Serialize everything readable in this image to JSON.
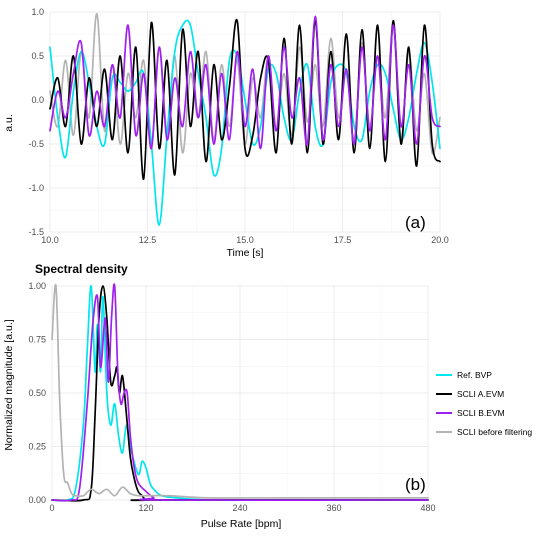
{
  "chart_data": [
    {
      "type": "line",
      "panel_label": "(a)",
      "title": "",
      "xlabel": "Time [s]",
      "ylabel": "a.u.",
      "xlim": [
        10.0,
        20.0
      ],
      "ylim": [
        -1.5,
        1.0
      ],
      "xticks": [
        "10.0",
        "12.5",
        "15.0",
        "17.5",
        "20.0"
      ],
      "yticks": [
        "-1.5",
        "-1.0",
        "-0.5",
        "0.0",
        "0.5",
        "1.0"
      ],
      "grid": true,
      "series": [
        {
          "name": "SCLI before filtering",
          "color": "#b3b3b3",
          "x": [
            10.0,
            10.2,
            10.4,
            10.6,
            10.8,
            11.0,
            11.2,
            11.4,
            11.6,
            11.8,
            12.0,
            12.2,
            12.4,
            12.6,
            12.8,
            13.0,
            13.2,
            13.4,
            13.6,
            13.8,
            14.0,
            14.2,
            14.4,
            14.6,
            14.8,
            15.0,
            15.2,
            15.4,
            15.6,
            15.8,
            16.0,
            16.2,
            16.4,
            16.6,
            16.8,
            17.0,
            17.2,
            17.4,
            17.6,
            17.8,
            18.0,
            18.2,
            18.4,
            18.6,
            18.8,
            19.0,
            19.2,
            19.4,
            19.6,
            19.8,
            20.0
          ],
          "y": [
            0.1,
            -0.3,
            0.45,
            -0.4,
            0.55,
            -0.2,
            0.98,
            -0.35,
            0.4,
            -0.5,
            0.3,
            -0.2,
            0.45,
            -0.55,
            0.6,
            -0.35,
            0.5,
            -0.6,
            0.3,
            -0.2,
            0.55,
            -0.45,
            0.4,
            -0.3,
            0.45,
            -0.5,
            0.25,
            -0.2,
            0.5,
            -0.35,
            0.3,
            -0.4,
            0.6,
            -0.25,
            0.4,
            -0.3,
            0.7,
            -0.2,
            0.35,
            -0.45,
            0.65,
            -0.3,
            0.5,
            -0.2,
            0.85,
            -0.45,
            0.55,
            -0.35,
            0.3,
            -0.6,
            -0.2
          ]
        },
        {
          "name": "Ref. BVP",
          "color": "#00e5ee",
          "x": [
            10.0,
            10.2,
            10.4,
            10.6,
            10.8,
            11.0,
            11.2,
            11.4,
            11.6,
            11.8,
            12.0,
            12.2,
            12.4,
            12.6,
            12.8,
            13.0,
            13.2,
            13.4,
            13.6,
            13.8,
            14.0,
            14.2,
            14.4,
            14.6,
            14.8,
            15.0,
            15.2,
            15.4,
            15.6,
            15.8,
            16.0,
            16.2,
            16.4,
            16.6,
            16.8,
            17.0,
            17.2,
            17.4,
            17.6,
            17.8,
            18.0,
            18.2,
            18.4,
            18.6,
            18.8,
            19.0,
            19.2,
            19.4,
            19.6,
            19.8,
            20.0
          ],
          "y": [
            0.6,
            -0.2,
            -0.65,
            0.1,
            0.55,
            0.2,
            -0.3,
            -0.5,
            0.25,
            0.2,
            0.1,
            0.2,
            0.3,
            -0.5,
            -1.42,
            -0.4,
            0.55,
            0.85,
            0.85,
            0.3,
            -0.2,
            -0.85,
            -0.55,
            0.45,
            0.5,
            0.0,
            -0.5,
            -0.3,
            0.35,
            0.3,
            -0.2,
            -0.45,
            0.1,
            0.4,
            -0.3,
            -0.5,
            0.2,
            0.4,
            0.3,
            -0.3,
            -0.45,
            0.1,
            0.4,
            0.3,
            -0.1,
            -0.45,
            -0.2,
            0.3,
            0.65,
            0.2,
            -0.55
          ]
        },
        {
          "name": "SCLI A.EVM",
          "color": "#000000",
          "x": [
            10.0,
            10.2,
            10.4,
            10.6,
            10.8,
            11.0,
            11.2,
            11.4,
            11.6,
            11.8,
            12.0,
            12.2,
            12.4,
            12.6,
            12.8,
            13.0,
            13.2,
            13.4,
            13.6,
            13.8,
            14.0,
            14.2,
            14.4,
            14.6,
            14.8,
            15.0,
            15.2,
            15.4,
            15.6,
            15.8,
            16.0,
            16.2,
            16.4,
            16.6,
            16.8,
            17.0,
            17.2,
            17.4,
            17.6,
            17.8,
            18.0,
            18.2,
            18.4,
            18.6,
            18.8,
            19.0,
            19.2,
            19.4,
            19.6,
            19.8,
            20.0
          ],
          "y": [
            -0.1,
            0.25,
            -0.3,
            0.5,
            -0.5,
            0.25,
            -0.3,
            0.35,
            -0.45,
            0.5,
            -0.6,
            0.6,
            -0.9,
            0.88,
            -0.55,
            0.45,
            -0.85,
            0.8,
            -0.3,
            0.55,
            -0.7,
            0.4,
            -0.45,
            0.15,
            0.9,
            -0.55,
            -0.4,
            0.25,
            0.45,
            -0.6,
            0.7,
            -0.5,
            0.85,
            -0.6,
            0.9,
            -0.5,
            0.55,
            -0.45,
            0.75,
            -0.6,
            0.8,
            -0.55,
            0.85,
            -0.7,
            0.9,
            -0.5,
            0.6,
            -0.75,
            0.85,
            -0.5,
            -0.7
          ]
        },
        {
          "name": "SCLI B.EVM",
          "color": "#a020f0",
          "x": [
            10.0,
            10.2,
            10.4,
            10.6,
            10.8,
            11.0,
            11.2,
            11.4,
            11.6,
            11.8,
            12.0,
            12.2,
            12.4,
            12.6,
            12.8,
            13.0,
            13.2,
            13.4,
            13.6,
            13.8,
            14.0,
            14.2,
            14.4,
            14.6,
            14.8,
            15.0,
            15.2,
            15.4,
            15.6,
            15.8,
            16.0,
            16.2,
            16.4,
            16.6,
            16.8,
            17.0,
            17.2,
            17.4,
            17.6,
            17.8,
            18.0,
            18.2,
            18.4,
            18.6,
            18.8,
            19.0,
            19.2,
            19.4,
            19.6,
            19.8,
            20.0
          ],
          "y": [
            -0.35,
            0.1,
            -0.2,
            0.3,
            0.65,
            -0.4,
            0.1,
            -0.3,
            0.4,
            -0.2,
            0.85,
            -0.4,
            0.3,
            -0.55,
            0.6,
            -0.45,
            0.25,
            -0.3,
            0.55,
            -0.2,
            0.4,
            -0.5,
            0.3,
            -0.45,
            0.55,
            -0.3,
            0.35,
            -0.55,
            0.5,
            -0.35,
            0.6,
            -0.2,
            0.25,
            -0.5,
            0.95,
            -0.45,
            0.4,
            -0.3,
            0.35,
            -0.5,
            0.6,
            -0.35,
            0.5,
            -0.45,
            0.85,
            -0.3,
            0.4,
            -0.5,
            0.5,
            -0.2,
            -0.3
          ]
        }
      ]
    },
    {
      "type": "line",
      "panel_label": "(b)",
      "title": "Spectral density",
      "xlabel": "Pulse Rate [bpm]",
      "ylabel": "Normalized magnitude [a.u.]",
      "xlim": [
        0,
        480
      ],
      "ylim": [
        0.0,
        1.0
      ],
      "xticks": [
        "0",
        "120",
        "240",
        "360",
        "480"
      ],
      "yticks": [
        "0.00",
        "0.25",
        "0.50",
        "0.75",
        "1.00"
      ],
      "grid": true,
      "legend_position": "right",
      "series": [
        {
          "name": "Ref. BVP",
          "color": "#00e5ee",
          "x": [
            0,
            20,
            30,
            40,
            45,
            50,
            55,
            58,
            62,
            65,
            70,
            75,
            80,
            85,
            90,
            95,
            100,
            110,
            115,
            120,
            125,
            130,
            140,
            160,
            200,
            300,
            400,
            480
          ],
          "y": [
            0.0,
            0.0,
            0.05,
            0.35,
            0.7,
            1.0,
            0.6,
            0.82,
            0.6,
            0.95,
            0.5,
            0.35,
            0.45,
            0.3,
            0.22,
            0.35,
            0.25,
            0.12,
            0.18,
            0.15,
            0.08,
            0.05,
            0.02,
            0.01,
            0.0,
            0.0,
            0.0,
            0.0
          ]
        },
        {
          "name": "SCLI A.EVM",
          "color": "#000000",
          "x": [
            0,
            40,
            50,
            55,
            60,
            65,
            70,
            75,
            80,
            83,
            86,
            90,
            95,
            100,
            105,
            110,
            115,
            120,
            130,
            480
          ],
          "y": [
            0.0,
            0.0,
            0.05,
            0.4,
            0.85,
            1.0,
            0.85,
            0.55,
            0.58,
            0.62,
            0.5,
            0.58,
            0.4,
            0.2,
            0.1,
            0.04,
            0.02,
            0.0,
            0.0,
            0.0
          ]
        },
        {
          "name": "SCLI B.EVM",
          "color": "#a020f0",
          "x": [
            0,
            25,
            35,
            45,
            52,
            58,
            62,
            68,
            72,
            76,
            80,
            84,
            88,
            92,
            96,
            100,
            105,
            110,
            120,
            130,
            140,
            480
          ],
          "y": [
            0.0,
            0.0,
            0.05,
            0.45,
            0.82,
            0.95,
            0.62,
            0.85,
            0.55,
            0.85,
            1.0,
            0.6,
            0.45,
            0.5,
            0.5,
            0.3,
            0.15,
            0.08,
            0.04,
            0.01,
            0.0,
            0.0
          ]
        },
        {
          "name": "SCLI before filtering",
          "color": "#b3b3b3",
          "x": [
            0,
            5,
            10,
            15,
            20,
            25,
            30,
            40,
            50,
            60,
            70,
            80,
            90,
            100,
            110,
            120,
            150,
            200,
            300,
            400,
            480
          ],
          "y": [
            0.75,
            1.0,
            0.45,
            0.12,
            0.08,
            0.03,
            0.02,
            0.02,
            0.05,
            0.03,
            0.05,
            0.02,
            0.06,
            0.03,
            0.02,
            0.02,
            0.02,
            0.01,
            0.01,
            0.01,
            0.01
          ]
        }
      ]
    }
  ]
}
